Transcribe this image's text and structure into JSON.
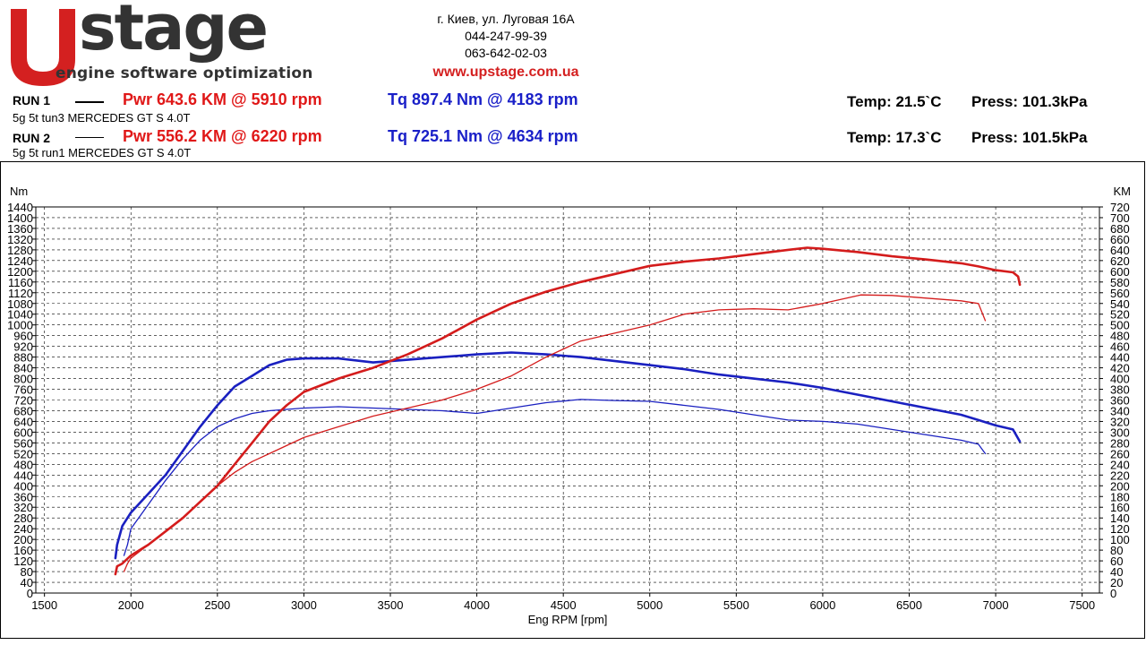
{
  "brand": {
    "logo_name": "Upstage",
    "tagline": "engine software optimization",
    "logo_colors": {
      "mark": "#d42020",
      "text": "#333333"
    }
  },
  "contact": {
    "address": "г. Киев, ул. Луговая 16А",
    "phone1": "044-247-99-39",
    "phone2": "063-642-02-03",
    "website": "www.upstage.com.ua"
  },
  "runs": [
    {
      "label": "RUN 1",
      "description": "5g 5t tun3 MERCEDES GT S 4.0T",
      "power_text": "Pwr  643.6 KM @ 5910 rpm",
      "torque_text": "Tq 897.4 Nm @ 4183 rpm",
      "temp_text": "Temp: 21.5`C",
      "press_text": "Press: 101.3kPa"
    },
    {
      "label": "RUN 2",
      "description": "5g 5t run1 MERCEDES GT S 4.0T",
      "power_text": "Pwr  556.2 KM @ 6220 rpm",
      "torque_text": "Tq 725.1 Nm @ 4634 rpm",
      "temp_text": "Temp: 17.3`C",
      "press_text": "Press: 101.5kPa"
    }
  ],
  "chart_data": {
    "type": "line",
    "xlabel": "Eng RPM [rpm]",
    "ylabel_left": "Nm",
    "ylabel_right": "KM",
    "xlim": [
      1450,
      7600
    ],
    "ylim_left": [
      0,
      1440
    ],
    "ylim_right": [
      0,
      720
    ],
    "x_ticks": [
      1500,
      2000,
      2500,
      3000,
      3500,
      4000,
      4500,
      5000,
      5500,
      6000,
      6500,
      7000,
      7500
    ],
    "y_left_ticks": [
      0,
      40,
      80,
      120,
      160,
      200,
      240,
      280,
      320,
      360,
      400,
      440,
      480,
      520,
      560,
      600,
      640,
      680,
      720,
      760,
      800,
      840,
      880,
      920,
      960,
      1000,
      1040,
      1080,
      1120,
      1160,
      1200,
      1240,
      1280,
      1320,
      1360,
      1400,
      1440
    ],
    "y_right_ticks": [
      0,
      20,
      40,
      60,
      80,
      100,
      120,
      140,
      160,
      180,
      200,
      220,
      240,
      260,
      280,
      300,
      320,
      340,
      360,
      380,
      400,
      420,
      440,
      460,
      480,
      500,
      520,
      540,
      560,
      580,
      600,
      620,
      640,
      660,
      680,
      700,
      720
    ],
    "grid": true,
    "colors": {
      "power": "#d41c1c",
      "torque": "#1a20c0"
    },
    "series": [
      {
        "run": 1,
        "kind": "torque",
        "axis": "left",
        "weight": "thick",
        "x": [
          1910,
          1920,
          1950,
          2000,
          2100,
          2200,
          2300,
          2400,
          2500,
          2600,
          2700,
          2800,
          2900,
          3000,
          3200,
          3400,
          3600,
          3800,
          4000,
          4200,
          4400,
          4600,
          4800,
          5000,
          5200,
          5400,
          5600,
          5800,
          6000,
          6200,
          6400,
          6600,
          6800,
          6900,
          7000,
          7100,
          7140
        ],
        "y": [
          130,
          180,
          250,
          300,
          370,
          440,
          530,
          620,
          700,
          770,
          810,
          850,
          870,
          875,
          875,
          860,
          870,
          880,
          890,
          897,
          890,
          880,
          865,
          850,
          835,
          815,
          800,
          785,
          765,
          740,
          715,
          690,
          665,
          645,
          625,
          610,
          565
        ]
      },
      {
        "run": 2,
        "kind": "torque",
        "axis": "left",
        "weight": "thin",
        "x": [
          1960,
          1980,
          2000,
          2100,
          2200,
          2300,
          2400,
          2500,
          2600,
          2700,
          2800,
          3000,
          3200,
          3400,
          3600,
          3800,
          4000,
          4200,
          4400,
          4600,
          4800,
          5000,
          5200,
          5400,
          5600,
          5800,
          6000,
          6200,
          6400,
          6600,
          6800,
          6900,
          6940
        ],
        "y": [
          140,
          180,
          240,
          330,
          420,
          500,
          570,
          620,
          650,
          670,
          680,
          690,
          695,
          690,
          685,
          680,
          670,
          690,
          710,
          722,
          718,
          715,
          700,
          685,
          665,
          645,
          640,
          630,
          610,
          590,
          570,
          555,
          520
        ]
      },
      {
        "run": 1,
        "kind": "power",
        "axis": "right",
        "weight": "thick",
        "x": [
          1910,
          1920,
          1950,
          2000,
          2100,
          2200,
          2300,
          2400,
          2500,
          2600,
          2700,
          2800,
          2900,
          3000,
          3200,
          3400,
          3600,
          3800,
          4000,
          4200,
          4400,
          4600,
          4800,
          5000,
          5200,
          5400,
          5600,
          5800,
          5910,
          6000,
          6200,
          6400,
          6600,
          6800,
          6900,
          7000,
          7100,
          7130,
          7140
        ],
        "y": [
          35,
          50,
          55,
          70,
          90,
          115,
          140,
          170,
          200,
          240,
          280,
          320,
          350,
          375,
          400,
          420,
          445,
          475,
          510,
          540,
          562,
          580,
          595,
          610,
          618,
          624,
          632,
          640,
          644,
          642,
          636,
          628,
          622,
          615,
          609,
          602,
          598,
          590,
          575
        ]
      },
      {
        "run": 2,
        "kind": "power",
        "axis": "right",
        "weight": "thin",
        "x": [
          1960,
          1980,
          2000,
          2100,
          2200,
          2300,
          2400,
          2500,
          2600,
          2700,
          2800,
          3000,
          3200,
          3400,
          3600,
          3800,
          4000,
          4200,
          4400,
          4600,
          4800,
          5000,
          5200,
          5400,
          5600,
          5800,
          6000,
          6220,
          6400,
          6600,
          6800,
          6900,
          6940
        ],
        "y": [
          40,
          55,
          65,
          90,
          115,
          140,
          170,
          200,
          225,
          245,
          260,
          290,
          310,
          330,
          345,
          360,
          380,
          405,
          440,
          470,
          485,
          500,
          520,
          528,
          530,
          528,
          540,
          556,
          555,
          550,
          545,
          540,
          508
        ]
      }
    ]
  }
}
